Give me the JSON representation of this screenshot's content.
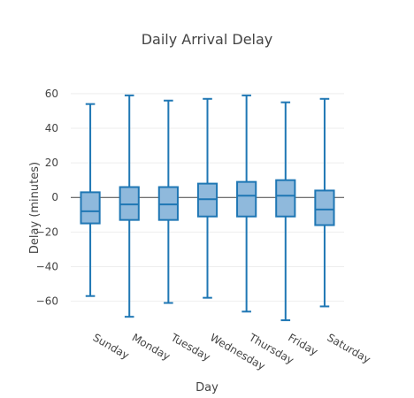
{
  "chart_data": {
    "type": "box",
    "title": "Daily Arrival Delay",
    "xlabel": "Day",
    "ylabel": "Delay (minutes)",
    "ylim": [
      -73,
      62
    ],
    "yticks": [
      60,
      40,
      20,
      0,
      -20,
      -40,
      -60
    ],
    "ytick_labels": [
      "60",
      "40",
      "20",
      "0",
      "−20",
      "−40",
      "−60"
    ],
    "grid": true,
    "categories": [
      "Sunday",
      "Monday",
      "Tuesday",
      "Wednesday",
      "Thursday",
      "Friday",
      "Saturday"
    ],
    "boxes": [
      {
        "min": -57,
        "q1": -15,
        "median": -8,
        "q3": 3,
        "max": 54
      },
      {
        "min": -69,
        "q1": -13,
        "median": -4,
        "q3": 6,
        "max": 59
      },
      {
        "min": -61,
        "q1": -13,
        "median": -4,
        "q3": 6,
        "max": 56
      },
      {
        "min": -58,
        "q1": -11,
        "median": -1,
        "q3": 8,
        "max": 57
      },
      {
        "min": -66,
        "q1": -11,
        "median": 1,
        "q3": 9,
        "max": 59
      },
      {
        "min": -71,
        "q1": -11,
        "median": 1,
        "q3": 10,
        "max": 55
      },
      {
        "min": -63,
        "q1": -16,
        "median": -7,
        "q3": 4,
        "max": 57
      }
    ],
    "colors": {
      "line": "#1f77b4",
      "fill": "#8fb9dc",
      "zeroline": "#444444",
      "grid": "#eeeeee",
      "text": "#444444"
    }
  }
}
